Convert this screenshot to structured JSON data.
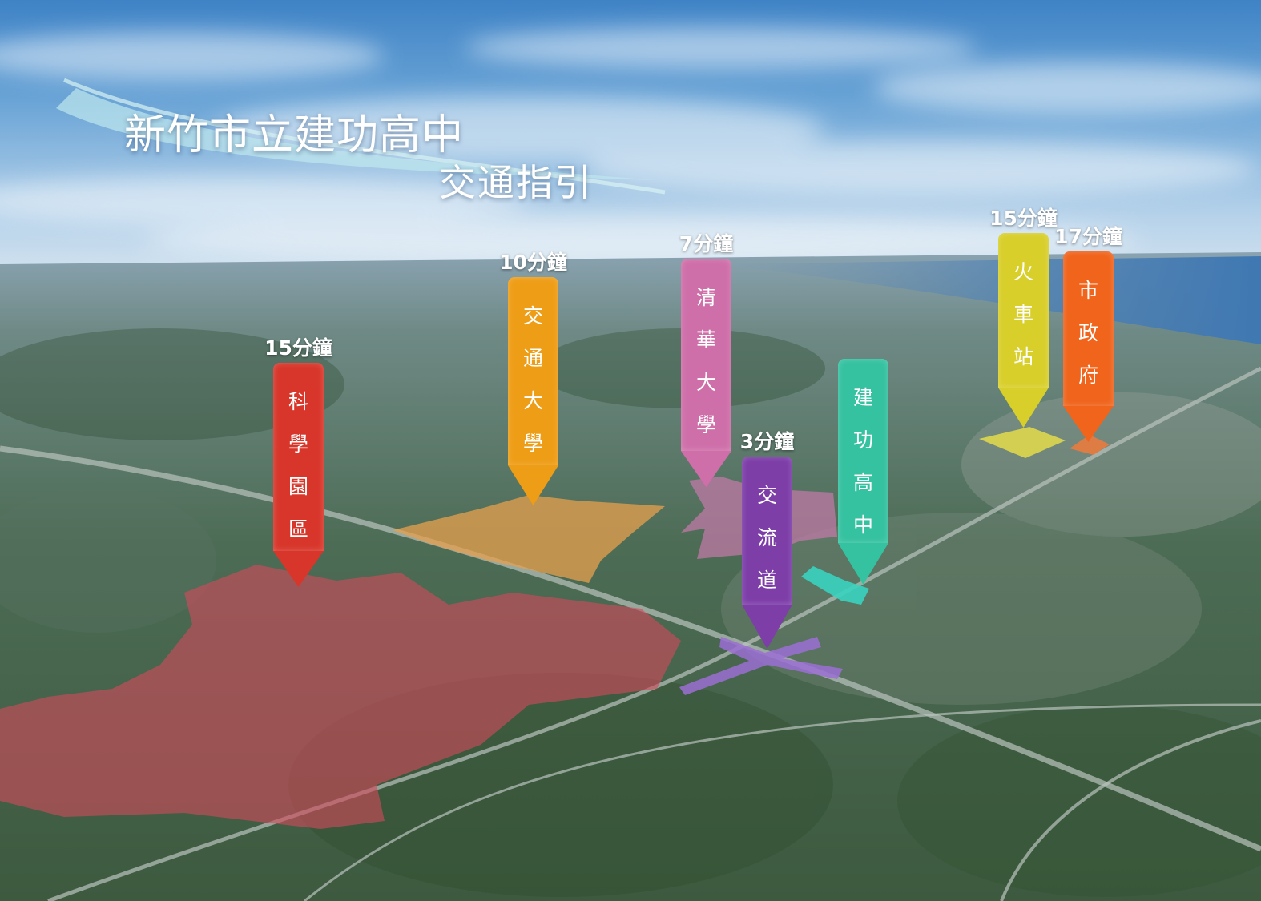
{
  "title": {
    "line1": "新竹市立建功高中",
    "line2": "交通指引"
  },
  "markers": [
    {
      "id": "science-park",
      "time": "15分鐘",
      "name": "科學園區",
      "color": "#d8362a"
    },
    {
      "id": "nctu",
      "time": "10分鐘",
      "name": "交通大學",
      "color": "#ee9d16"
    },
    {
      "id": "nthu",
      "time": "7分鐘",
      "name": "清華大學",
      "color": "#cf6fa9"
    },
    {
      "id": "interchange",
      "time": "3分鐘",
      "name": "交流道",
      "color": "#7d3ea8"
    },
    {
      "id": "school",
      "time": "",
      "name": "建功高中",
      "color": "#35c2a0"
    },
    {
      "id": "train-station",
      "time": "15分鐘",
      "name": "火車站",
      "color": "#d8cf2a"
    },
    {
      "id": "city-hall",
      "time": "17分鐘",
      "name": "市政府",
      "color": "#f0641c"
    }
  ]
}
